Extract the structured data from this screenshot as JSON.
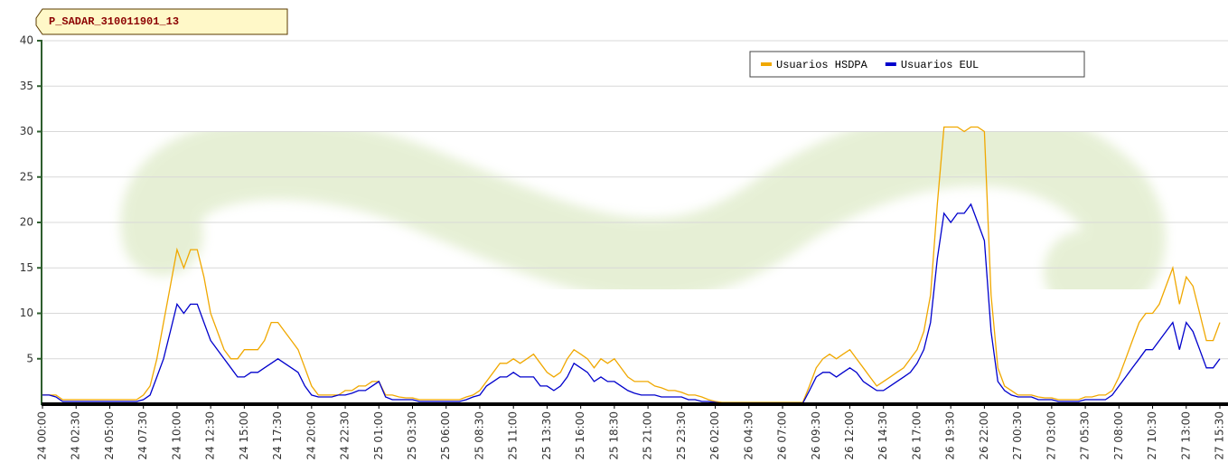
{
  "chart_data": {
    "type": "line",
    "title": "P_SADAR_310011901_13",
    "categories": [
      "24 00:00",
      null,
      null,
      null,
      null,
      "24 02:30",
      null,
      null,
      null,
      null,
      "24 05:00",
      null,
      null,
      null,
      null,
      "24 07:30",
      null,
      null,
      null,
      null,
      "24 10:00",
      null,
      null,
      null,
      null,
      "24 12:30",
      null,
      null,
      null,
      null,
      "24 15:00",
      null,
      null,
      null,
      null,
      "24 17:30",
      null,
      null,
      null,
      null,
      "24 20:00",
      null,
      null,
      null,
      null,
      "24 22:30",
      null,
      null,
      null,
      null,
      "25 01:00",
      null,
      null,
      null,
      null,
      "25 03:30",
      null,
      null,
      null,
      null,
      "25 06:00",
      null,
      null,
      null,
      null,
      "25 08:30",
      null,
      null,
      null,
      null,
      "25 11:00",
      null,
      null,
      null,
      null,
      "25 13:30",
      null,
      null,
      null,
      null,
      "25 16:00",
      null,
      null,
      null,
      null,
      "25 18:30",
      null,
      null,
      null,
      null,
      "25 21:00",
      null,
      null,
      null,
      null,
      "25 23:30",
      null,
      null,
      null,
      null,
      "26 02:00",
      null,
      null,
      null,
      null,
      "26 04:30",
      null,
      null,
      null,
      null,
      "26 07:00",
      null,
      null,
      null,
      null,
      "26 09:30",
      null,
      null,
      null,
      null,
      "26 12:00",
      null,
      null,
      null,
      null,
      "26 14:30",
      null,
      null,
      null,
      null,
      "26 17:00",
      null,
      null,
      null,
      null,
      "26 19:30",
      null,
      null,
      null,
      null,
      "26 22:00",
      null,
      null,
      null,
      null,
      "27 00:30",
      null,
      null,
      null,
      null,
      "27 03:00",
      null,
      null,
      null,
      null,
      "27 05:30",
      null,
      null,
      null,
      null,
      "27 08:00",
      null,
      null,
      null,
      null,
      "27 10:30",
      null,
      null,
      null,
      null,
      "27 13:00",
      null,
      null,
      null,
      null,
      "27 15:30"
    ],
    "series": [
      {
        "name": "Usuarios HSDPA",
        "color": "#f0a800",
        "values": [
          1,
          1,
          1,
          0.5,
          0.5,
          0.5,
          0.5,
          0.5,
          0.5,
          0.5,
          0.5,
          0.5,
          0.5,
          0.5,
          0.5,
          1,
          2,
          5,
          9,
          13,
          17,
          15,
          17,
          17,
          14,
          10,
          8,
          6,
          5,
          5,
          6,
          6,
          6,
          7,
          9,
          9,
          8,
          7,
          6,
          4,
          2,
          1,
          1,
          1,
          1,
          1.5,
          1.5,
          2,
          2,
          2.5,
          2.5,
          1,
          1,
          0.8,
          0.7,
          0.7,
          0.5,
          0.5,
          0.5,
          0.5,
          0.5,
          0.5,
          0.5,
          0.8,
          1,
          1.5,
          2.5,
          3.5,
          4.5,
          4.5,
          5,
          4.5,
          5,
          5.5,
          4.5,
          3.5,
          3,
          3.5,
          5,
          6,
          5.5,
          5,
          4,
          5,
          4.5,
          5,
          4,
          3,
          2.5,
          2.5,
          2.5,
          2,
          1.8,
          1.5,
          1.5,
          1.3,
          1,
          1,
          0.8,
          0.5,
          0.3,
          0.2,
          0.2,
          0.2,
          0.2,
          0.2,
          0.2,
          0.2,
          0.2,
          0.2,
          0.2,
          0.2,
          0.2,
          0.2,
          2,
          4,
          5,
          5.5,
          5,
          5.5,
          6,
          5,
          4,
          3,
          2,
          2.5,
          3,
          3.5,
          4,
          5,
          6,
          8,
          12,
          22,
          30.5,
          30.5,
          30.5,
          30,
          30.5,
          30.5,
          30,
          12,
          4,
          2,
          1.5,
          1,
          1,
          1,
          0.8,
          0.7,
          0.7,
          0.5,
          0.5,
          0.5,
          0.5,
          0.8,
          0.8,
          1,
          1,
          1.5,
          3,
          5,
          7,
          9,
          10,
          10,
          11,
          13,
          15,
          11,
          14,
          13,
          10,
          7,
          7,
          9
        ]
      },
      {
        "name": "Usuarios EUL",
        "color": "#0000cc",
        "values": [
          1,
          1,
          0.8,
          0.3,
          0.3,
          0.3,
          0.3,
          0.3,
          0.3,
          0.3,
          0.3,
          0.3,
          0.3,
          0.3,
          0.3,
          0.5,
          1,
          3,
          5,
          8,
          11,
          10,
          11,
          11,
          9,
          7,
          6,
          5,
          4,
          3,
          3,
          3.5,
          3.5,
          4,
          4.5,
          5,
          4.5,
          4,
          3.5,
          2,
          1,
          0.8,
          0.8,
          0.8,
          1,
          1,
          1.2,
          1.5,
          1.5,
          2,
          2.5,
          0.8,
          0.5,
          0.5,
          0.5,
          0.5,
          0.3,
          0.3,
          0.3,
          0.3,
          0.3,
          0.3,
          0.3,
          0.5,
          0.8,
          1,
          2,
          2.5,
          3,
          3,
          3.5,
          3,
          3,
          3,
          2,
          2,
          1.5,
          2,
          3,
          4.5,
          4,
          3.5,
          2.5,
          3,
          2.5,
          2.5,
          2,
          1.5,
          1.2,
          1,
          1,
          1,
          0.8,
          0.8,
          0.8,
          0.8,
          0.5,
          0.5,
          0.3,
          0.3,
          0.2,
          0.1,
          0.1,
          0.1,
          0.1,
          0.1,
          0.1,
          0.1,
          0.1,
          0.1,
          0.1,
          0.1,
          0.1,
          0.1,
          1.5,
          3,
          3.5,
          3.5,
          3,
          3.5,
          4,
          3.5,
          2.5,
          2,
          1.5,
          1.5,
          2,
          2.5,
          3,
          3.5,
          4.5,
          6,
          9,
          16,
          21,
          20,
          21,
          21,
          22,
          20,
          18,
          8,
          2.5,
          1.5,
          1,
          0.8,
          0.8,
          0.8,
          0.5,
          0.5,
          0.5,
          0.3,
          0.3,
          0.3,
          0.3,
          0.5,
          0.5,
          0.5,
          0.5,
          1,
          2,
          3,
          4,
          5,
          6,
          6,
          7,
          8,
          9,
          6,
          9,
          8,
          6,
          4,
          4,
          5
        ]
      }
    ],
    "ylim": [
      0,
      40
    ],
    "yticks": [
      5,
      10,
      15,
      20,
      25,
      30,
      35,
      40
    ],
    "grid": true
  }
}
